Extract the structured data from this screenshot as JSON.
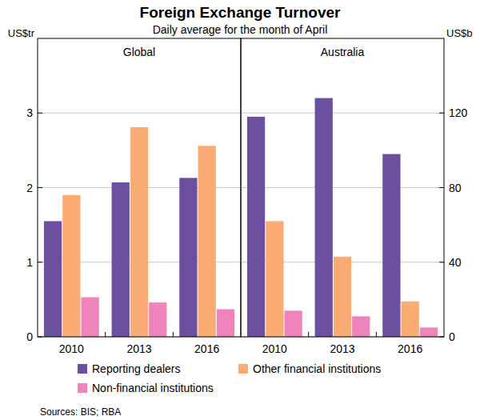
{
  "chart_data": {
    "type": "bar",
    "title": "Foreign Exchange Turnover",
    "subtitle": "Daily average for the month of April",
    "source": "Sources:  BIS; RBA",
    "categories": [
      "2010",
      "2013",
      "2016"
    ],
    "legend": "bottom",
    "grid": true,
    "series": [
      {
        "name": "Reporting dealers",
        "color": "#6d4fa0"
      },
      {
        "name": "Other financial institutions",
        "color": "#fbab74"
      },
      {
        "name": "Non-financial institutions",
        "color": "#ef84bd"
      }
    ],
    "panels": [
      {
        "title": "Global",
        "y_label": "US$tr",
        "axis": "y",
        "ylim": [
          0,
          4
        ],
        "yticks": [
          0,
          1,
          2,
          3
        ],
        "values": [
          [
            1.55,
            2.07,
            2.13
          ],
          [
            1.9,
            2.81,
            2.56
          ],
          [
            0.53,
            0.46,
            0.37
          ]
        ]
      },
      {
        "title": "Australia",
        "y_label": "US$b",
        "axis": "y2",
        "ylim": [
          0,
          160
        ],
        "yticks": [
          0,
          40,
          80,
          120
        ],
        "values": [
          [
            118,
            128,
            98
          ],
          [
            62,
            43,
            19
          ],
          [
            14,
            11,
            5
          ]
        ]
      }
    ]
  }
}
